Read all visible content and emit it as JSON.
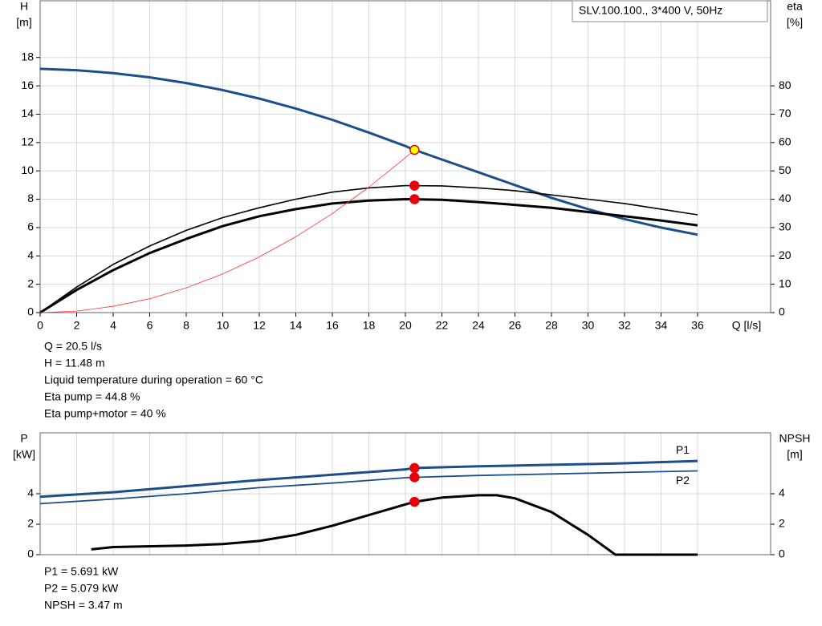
{
  "chart_data": [
    {
      "type": "line",
      "legend_box": "SLV.100.100., 3*400 V, 50Hz",
      "x_label": "Q [l/s]",
      "y_label": "H",
      "y_unit": "[m]",
      "y2_label": "eta",
      "y2_unit": "[%]",
      "xlim": [
        0,
        40
      ],
      "xticks": [
        0,
        2,
        4,
        6,
        8,
        10,
        12,
        14,
        16,
        18,
        20,
        22,
        24,
        26,
        28,
        30,
        32,
        34,
        36
      ],
      "ylim": [
        0,
        22
      ],
      "yticks": [
        0,
        2,
        4,
        6,
        8,
        10,
        12,
        14,
        16,
        18
      ],
      "y2lim": [
        0,
        110
      ],
      "y2ticks": [
        0,
        10,
        20,
        30,
        40,
        50,
        60,
        70,
        80
      ],
      "grid": true,
      "series": [
        {
          "color": "#1c4f8a",
          "width": 3,
          "axis": "y",
          "x": [
            0,
            2,
            4,
            6,
            8,
            10,
            12,
            14,
            16,
            18,
            20,
            20.5,
            22,
            24,
            26,
            28,
            30,
            32,
            34,
            36
          ],
          "y": [
            17.2,
            17.1,
            16.9,
            16.6,
            16.2,
            15.7,
            15.1,
            14.4,
            13.6,
            12.7,
            11.75,
            11.48,
            10.8,
            9.9,
            9.0,
            8.1,
            7.3,
            6.6,
            6.0,
            5.5
          ]
        },
        {
          "color": "#000000",
          "width": 1.6,
          "axis": "y2",
          "x": [
            0,
            2,
            4,
            6,
            8,
            10,
            12,
            14,
            16,
            18,
            20,
            22,
            24,
            26,
            28,
            30,
            32,
            34,
            36
          ],
          "y": [
            0,
            9,
            17,
            23.5,
            29,
            33.5,
            37,
            40,
            42.5,
            44,
            44.8,
            44.7,
            44,
            43,
            41.5,
            40,
            38.5,
            36.5,
            34.5
          ]
        },
        {
          "color": "#000000",
          "width": 3,
          "axis": "y2",
          "x": [
            0,
            2,
            4,
            6,
            8,
            10,
            12,
            14,
            16,
            18,
            20,
            22,
            24,
            26,
            28,
            30,
            32,
            34,
            36
          ],
          "y": [
            0,
            8,
            15,
            21,
            26,
            30.5,
            34,
            36.5,
            38.5,
            39.5,
            40,
            39.8,
            39,
            38,
            37,
            35.5,
            34,
            32.5,
            30.8
          ]
        },
        {
          "color": "#ff3030",
          "width": 0.8,
          "axis": "y",
          "x": [
            0,
            2,
            4,
            6,
            8,
            10,
            12,
            14,
            16,
            18,
            20,
            20.5
          ],
          "y": [
            0,
            0.11,
            0.44,
            0.98,
            1.75,
            2.73,
            3.93,
            5.35,
            6.99,
            8.85,
            10.93,
            11.48
          ]
        }
      ],
      "markers": [
        {
          "x": 20.5,
          "y": 11.48,
          "axis": "y",
          "color": "#ffff00",
          "stroke": "#e8000b"
        },
        {
          "x": 20.5,
          "y": 44.8,
          "axis": "y2",
          "color": "#e8000b",
          "stroke": "#e8000b"
        },
        {
          "x": 20.5,
          "y": 40,
          "axis": "y2",
          "color": "#e8000b",
          "stroke": "#e8000b"
        }
      ],
      "notes": [
        "Q = 20.5 l/s",
        "H = 11.48 m",
        "Liquid temperature during operation = 60 °C",
        "Eta pump = 44.8 %",
        "Eta pump+motor = 40 %"
      ]
    },
    {
      "type": "line",
      "y_label": "P",
      "y_unit": "[kW]",
      "y2_label": "NPSH",
      "y2_unit": "[m]",
      "xlim": [
        0,
        40
      ],
      "ylim": [
        0,
        8
      ],
      "yticks": [
        0,
        2,
        4
      ],
      "y2lim": [
        0,
        8
      ],
      "y2ticks": [
        0,
        2,
        4
      ],
      "grid": true,
      "series": [
        {
          "name": "P1",
          "color": "#1c4f8a",
          "width": 3,
          "axis": "y",
          "x": [
            0,
            4,
            8,
            12,
            16,
            20,
            20.5,
            24,
            28,
            32,
            36
          ],
          "y": [
            3.8,
            4.1,
            4.5,
            4.9,
            5.25,
            5.6,
            5.69,
            5.8,
            5.9,
            6.0,
            6.15
          ]
        },
        {
          "name": "P2",
          "color": "#1c4f8a",
          "width": 1.8,
          "axis": "y",
          "x": [
            0,
            4,
            8,
            12,
            16,
            20,
            20.5,
            24,
            28,
            32,
            36
          ],
          "y": [
            3.35,
            3.65,
            4.0,
            4.4,
            4.7,
            5.05,
            5.08,
            5.2,
            5.3,
            5.4,
            5.5
          ]
        },
        {
          "color": "#000000",
          "width": 3,
          "axis": "y2",
          "x": [
            2.8,
            4,
            8,
            10,
            12,
            14,
            16,
            18,
            20,
            20.5,
            22,
            24,
            25,
            26,
            28,
            30,
            31.5,
            36
          ],
          "y": [
            0.35,
            0.5,
            0.6,
            0.7,
            0.9,
            1.3,
            1.9,
            2.6,
            3.3,
            3.47,
            3.75,
            3.9,
            3.9,
            3.7,
            2.8,
            1.3,
            0,
            0
          ]
        }
      ],
      "markers": [
        {
          "x": 20.5,
          "y": 5.691,
          "axis": "y",
          "color": "#e8000b",
          "stroke": "#e8000b"
        },
        {
          "x": 20.5,
          "y": 5.079,
          "axis": "y",
          "color": "#e8000b",
          "stroke": "#e8000b"
        },
        {
          "x": 20.5,
          "y": 3.47,
          "axis": "y2",
          "color": "#e8000b",
          "stroke": "#e8000b"
        }
      ],
      "notes": [
        "P1 = 5.691 kW",
        "P2 = 5.079 kW",
        "NPSH = 3.47 m"
      ]
    }
  ]
}
